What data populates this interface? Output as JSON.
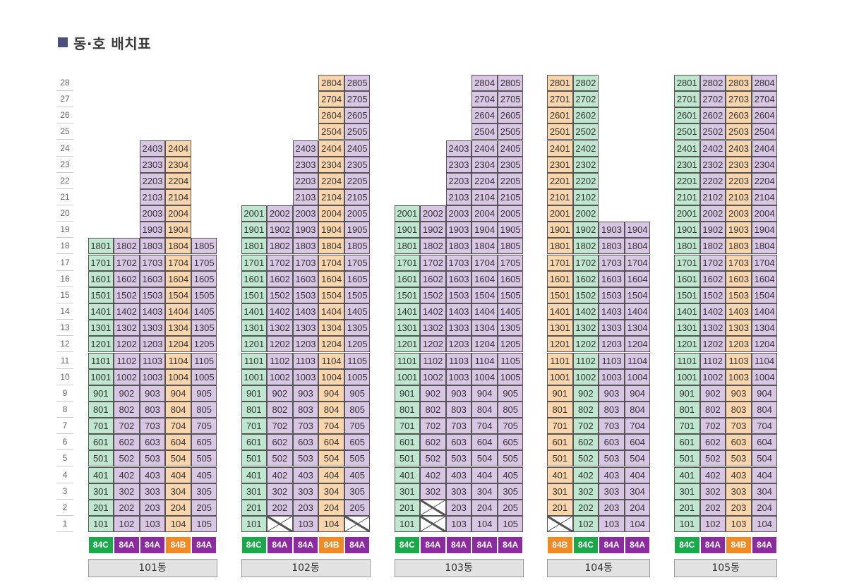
{
  "title": "동·호 배치표",
  "floors": [
    "28",
    "27",
    "26",
    "25",
    "24",
    "23",
    "22",
    "21",
    "20",
    "19",
    "18",
    "17",
    "16",
    "15",
    "14",
    "13",
    "12",
    "11",
    "10",
    "9",
    "8",
    "7",
    "6",
    "5",
    "4",
    "3",
    "2",
    "1"
  ],
  "colors": {
    "84C": "#19a84a",
    "84A": "#8c2aa0",
    "84B": "#f18a25"
  },
  "buildings": [
    {
      "name": "101동",
      "lines": [
        {
          "num": 1,
          "type": "84C",
          "top": 18,
          "missing": []
        },
        {
          "num": 2,
          "type": "84A",
          "top": 18,
          "missing": []
        },
        {
          "num": 3,
          "type": "84A",
          "top": 24,
          "missing": []
        },
        {
          "num": 4,
          "type": "84B",
          "top": 24,
          "missing": []
        },
        {
          "num": 5,
          "type": "84A",
          "top": 18,
          "missing": []
        }
      ]
    },
    {
      "name": "102동",
      "lines": [
        {
          "num": 1,
          "type": "84C",
          "top": 20,
          "missing": []
        },
        {
          "num": 2,
          "type": "84A",
          "top": 20,
          "missing": [
            1
          ]
        },
        {
          "num": 3,
          "type": "84A",
          "top": 24,
          "missing": []
        },
        {
          "num": 4,
          "type": "84B",
          "top": 28,
          "missing": []
        },
        {
          "num": 5,
          "type": "84A",
          "top": 28,
          "missing": [
            1
          ]
        }
      ]
    },
    {
      "name": "103동",
      "lines": [
        {
          "num": 1,
          "type": "84C",
          "top": 20,
          "missing": []
        },
        {
          "num": 2,
          "type": "84A",
          "top": 20,
          "missing": [
            1,
            2
          ]
        },
        {
          "num": 3,
          "type": "84A",
          "top": 24,
          "missing": []
        },
        {
          "num": 4,
          "type": "84A",
          "top": 28,
          "missing": []
        },
        {
          "num": 5,
          "type": "84A",
          "top": 28,
          "missing": []
        }
      ]
    },
    {
      "name": "104동",
      "lines": [
        {
          "num": 1,
          "type": "84B",
          "top": 28,
          "missing": [
            1
          ]
        },
        {
          "num": 2,
          "type": "84C",
          "top": 28,
          "missing": []
        },
        {
          "num": 3,
          "type": "84A",
          "top": 19,
          "missing": []
        },
        {
          "num": 4,
          "type": "84A",
          "top": 19,
          "missing": []
        }
      ]
    },
    {
      "name": "105동",
      "lines": [
        {
          "num": 1,
          "type": "84C",
          "top": 28,
          "missing": []
        },
        {
          "num": 2,
          "type": "84A",
          "top": 28,
          "missing": []
        },
        {
          "num": 3,
          "type": "84B",
          "top": 28,
          "missing": []
        },
        {
          "num": 4,
          "type": "84A",
          "top": 28,
          "missing": []
        }
      ]
    }
  ]
}
